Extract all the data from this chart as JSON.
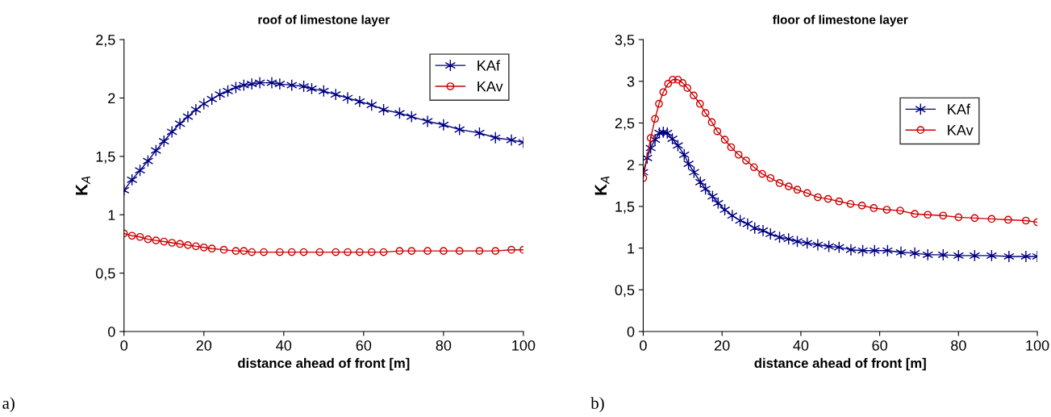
{
  "chart_data": [
    {
      "type": "line",
      "title": "roof of limestone layer",
      "xlabel": "distance ahead of front [m]",
      "ylabel": "K$_{A}$",
      "annotations": [
        "a)"
      ],
      "xlim": [
        0,
        100
      ],
      "xticks": [
        0,
        20,
        40,
        60,
        80,
        100
      ],
      "ylim": [
        0,
        2.5
      ],
      "yticks": [
        0,
        {
          "value": 0.5,
          "label": "0,5"
        },
        1,
        {
          "value": 1.5,
          "label": "1,5"
        },
        2,
        {
          "value": 2.5,
          "label": "2,5"
        }
      ],
      "grid": false,
      "legend": "top right",
      "line_style": "solid",
      "series": [
        {
          "name": "KAf",
          "color": "#000080",
          "marker": "cross",
          "x": [
            0,
            2,
            4,
            6,
            8,
            10,
            12,
            14,
            16,
            18,
            20,
            22,
            24,
            26,
            28,
            30,
            32,
            34,
            37,
            39,
            42,
            45,
            47,
            50,
            53,
            56,
            59,
            62,
            65,
            69,
            72,
            76,
            80,
            84,
            89,
            93,
            97,
            100
          ],
          "values": [
            1.21,
            1.3,
            1.38,
            1.46,
            1.55,
            1.63,
            1.71,
            1.78,
            1.84,
            1.9,
            1.95,
            1.99,
            2.03,
            2.06,
            2.09,
            2.11,
            2.12,
            2.13,
            2.13,
            2.12,
            2.11,
            2.1,
            2.08,
            2.06,
            2.03,
            2.0,
            1.97,
            1.94,
            1.9,
            1.87,
            1.84,
            1.8,
            1.77,
            1.73,
            1.7,
            1.66,
            1.64,
            1.62
          ]
        },
        {
          "name": "KAv",
          "color": "#cc0000",
          "marker": "circle",
          "x": [
            0,
            2,
            4,
            6,
            8,
            10,
            12,
            14,
            16,
            18,
            20,
            22,
            25,
            28,
            30,
            32,
            35,
            39,
            42,
            45,
            49,
            53,
            56,
            59,
            62,
            65,
            69,
            72,
            76,
            80,
            84,
            89,
            93,
            97,
            100
          ],
          "values": [
            0.84,
            0.82,
            0.81,
            0.79,
            0.78,
            0.77,
            0.76,
            0.75,
            0.74,
            0.73,
            0.72,
            0.71,
            0.7,
            0.69,
            0.69,
            0.68,
            0.68,
            0.68,
            0.68,
            0.68,
            0.68,
            0.68,
            0.68,
            0.68,
            0.68,
            0.68,
            0.69,
            0.69,
            0.69,
            0.69,
            0.69,
            0.69,
            0.69,
            0.7,
            0.7
          ]
        }
      ]
    },
    {
      "type": "line",
      "title": "floor of limestone layer",
      "xlabel": "distance ahead of front [m]",
      "ylabel": "K$_{A}$",
      "annotations": [
        "b)"
      ],
      "xlim": [
        0,
        100
      ],
      "xticks": [
        0,
        20,
        40,
        60,
        80,
        100
      ],
      "ylim": [
        0,
        3.5
      ],
      "yticks": [
        0,
        {
          "value": 0.5,
          "label": "0,5"
        },
        1,
        {
          "value": 1.5,
          "label": "1,5"
        },
        2,
        {
          "value": 2.5,
          "label": "2,5"
        },
        3,
        {
          "value": 3.5,
          "label": "3,5"
        }
      ],
      "grid": false,
      "legend": "top right",
      "line_style": "solid",
      "series": [
        {
          "name": "KAf",
          "color": "#000080",
          "marker": "cross",
          "x": [
            0,
            1,
            1.9,
            3,
            4.1,
            5.1,
            6.1,
            7.4,
            8.8,
            10.4,
            11.5,
            12.9,
            14.5,
            15.8,
            17.6,
            19,
            20.7,
            22.6,
            24.6,
            26.5,
            28.3,
            30.4,
            32.3,
            34.6,
            36.9,
            39.1,
            41.6,
            44.3,
            47.1,
            49.7,
            52.7,
            55.7,
            58.7,
            62,
            65.4,
            68.9,
            72.2,
            76.1,
            80,
            84.1,
            88.4,
            92.8,
            97.1,
            100
          ],
          "values": [
            1.91,
            2.08,
            2.2,
            2.3,
            2.38,
            2.39,
            2.38,
            2.31,
            2.23,
            2.12,
            2.01,
            1.91,
            1.79,
            1.71,
            1.62,
            1.54,
            1.46,
            1.39,
            1.33,
            1.29,
            1.24,
            1.21,
            1.17,
            1.13,
            1.11,
            1.08,
            1.06,
            1.04,
            1.02,
            1.01,
            0.98,
            0.97,
            0.97,
            0.97,
            0.95,
            0.94,
            0.92,
            0.92,
            0.91,
            0.91,
            0.91,
            0.9,
            0.9,
            0.9
          ]
        },
        {
          "name": "KAv",
          "color": "#cc0000",
          "marker": "circle",
          "x": [
            0,
            1.9,
            3,
            4,
            5.1,
            6.3,
            7.5,
            8.8,
            10,
            11.2,
            12.8,
            14.4,
            15.8,
            17.4,
            18.8,
            20.7,
            22.3,
            24.2,
            26.1,
            28.1,
            30.2,
            32.3,
            34.6,
            36.9,
            39.1,
            41.6,
            44.3,
            46.9,
            49.7,
            52.6,
            55.5,
            58.5,
            61.8,
            65.2,
            68.9,
            72.2,
            76.1,
            80,
            84.1,
            88.4,
            92.6,
            97.1,
            100
          ],
          "values": [
            1.84,
            2.32,
            2.55,
            2.73,
            2.87,
            2.97,
            3.02,
            3.02,
            2.98,
            2.92,
            2.83,
            2.73,
            2.62,
            2.51,
            2.4,
            2.3,
            2.21,
            2.12,
            2.05,
            1.97,
            1.89,
            1.84,
            1.78,
            1.74,
            1.7,
            1.66,
            1.61,
            1.59,
            1.56,
            1.53,
            1.51,
            1.48,
            1.46,
            1.45,
            1.41,
            1.4,
            1.39,
            1.37,
            1.36,
            1.35,
            1.34,
            1.33,
            1.31
          ]
        }
      ]
    }
  ]
}
